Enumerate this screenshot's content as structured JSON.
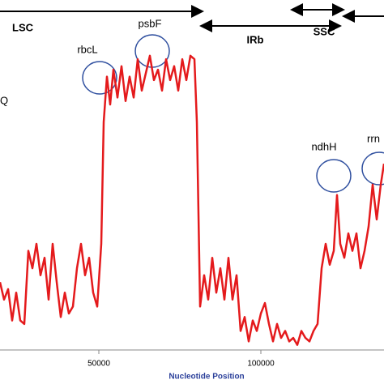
{
  "chart_data": {
    "type": "line",
    "x_label": "Nucleotide Position",
    "regions": [
      "LSC",
      "IRb",
      "SSC"
    ],
    "annotations": [
      "rbcL",
      "psbF",
      "ndhH",
      "rrn",
      "Q"
    ],
    "xlim": [
      19500,
      138000
    ],
    "xticks": [
      50000,
      100000
    ],
    "ylim": [
      0,
      100
    ],
    "series": [
      {
        "color": "#e41a1c",
        "x": [
          19500,
          20750,
          22000,
          23250,
          24500,
          25750,
          27000,
          28250,
          29500,
          30750,
          32000,
          33250,
          34500,
          35750,
          37000,
          38250,
          39500,
          40750,
          42000,
          43250,
          44500,
          45750,
          47000,
          48250,
          49500,
          50750,
          51500,
          52500,
          53500,
          54500,
          55750,
          57000,
          58250,
          59500,
          60750,
          62000,
          63250,
          64500,
          65750,
          67000,
          68250,
          69500,
          70750,
          72000,
          73250,
          74500,
          75750,
          77000,
          78250,
          79500,
          80250,
          81250,
          82500,
          83750,
          85000,
          86250,
          87500,
          88750,
          90000,
          91250,
          92500,
          93750,
          95000,
          96250,
          97500,
          98750,
          100000,
          101250,
          102500,
          103750,
          105000,
          106250,
          107500,
          108750,
          110000,
          111250,
          112500,
          113750,
          115000,
          116250,
          117500,
          118750,
          120000,
          121250,
          122500,
          123500,
          124500,
          125750,
          127000,
          128250,
          129500,
          130750,
          132000,
          133250,
          134500,
          135750,
          137000,
          138000
        ],
        "values": [
          19,
          14,
          17,
          8,
          16,
          8,
          7,
          28,
          23,
          30,
          21,
          26,
          14,
          30,
          19,
          9,
          16,
          10,
          12,
          23,
          30,
          21,
          26,
          16,
          12,
          30,
          65,
          78,
          70,
          80,
          72,
          81,
          71,
          78,
          72,
          83,
          74,
          79,
          84,
          77,
          80,
          74,
          83,
          77,
          81,
          74,
          83,
          77,
          84,
          83,
          65,
          12,
          21,
          14,
          26,
          16,
          23,
          14,
          26,
          14,
          21,
          5,
          9,
          2,
          8,
          5,
          10,
          13,
          7,
          2,
          7,
          3,
          5,
          2,
          3,
          1,
          5,
          3,
          2,
          5,
          7,
          23,
          30,
          24,
          28,
          44,
          30,
          26,
          33,
          28,
          33,
          23,
          28,
          35,
          47,
          37,
          47,
          53
        ]
      }
    ]
  }
}
